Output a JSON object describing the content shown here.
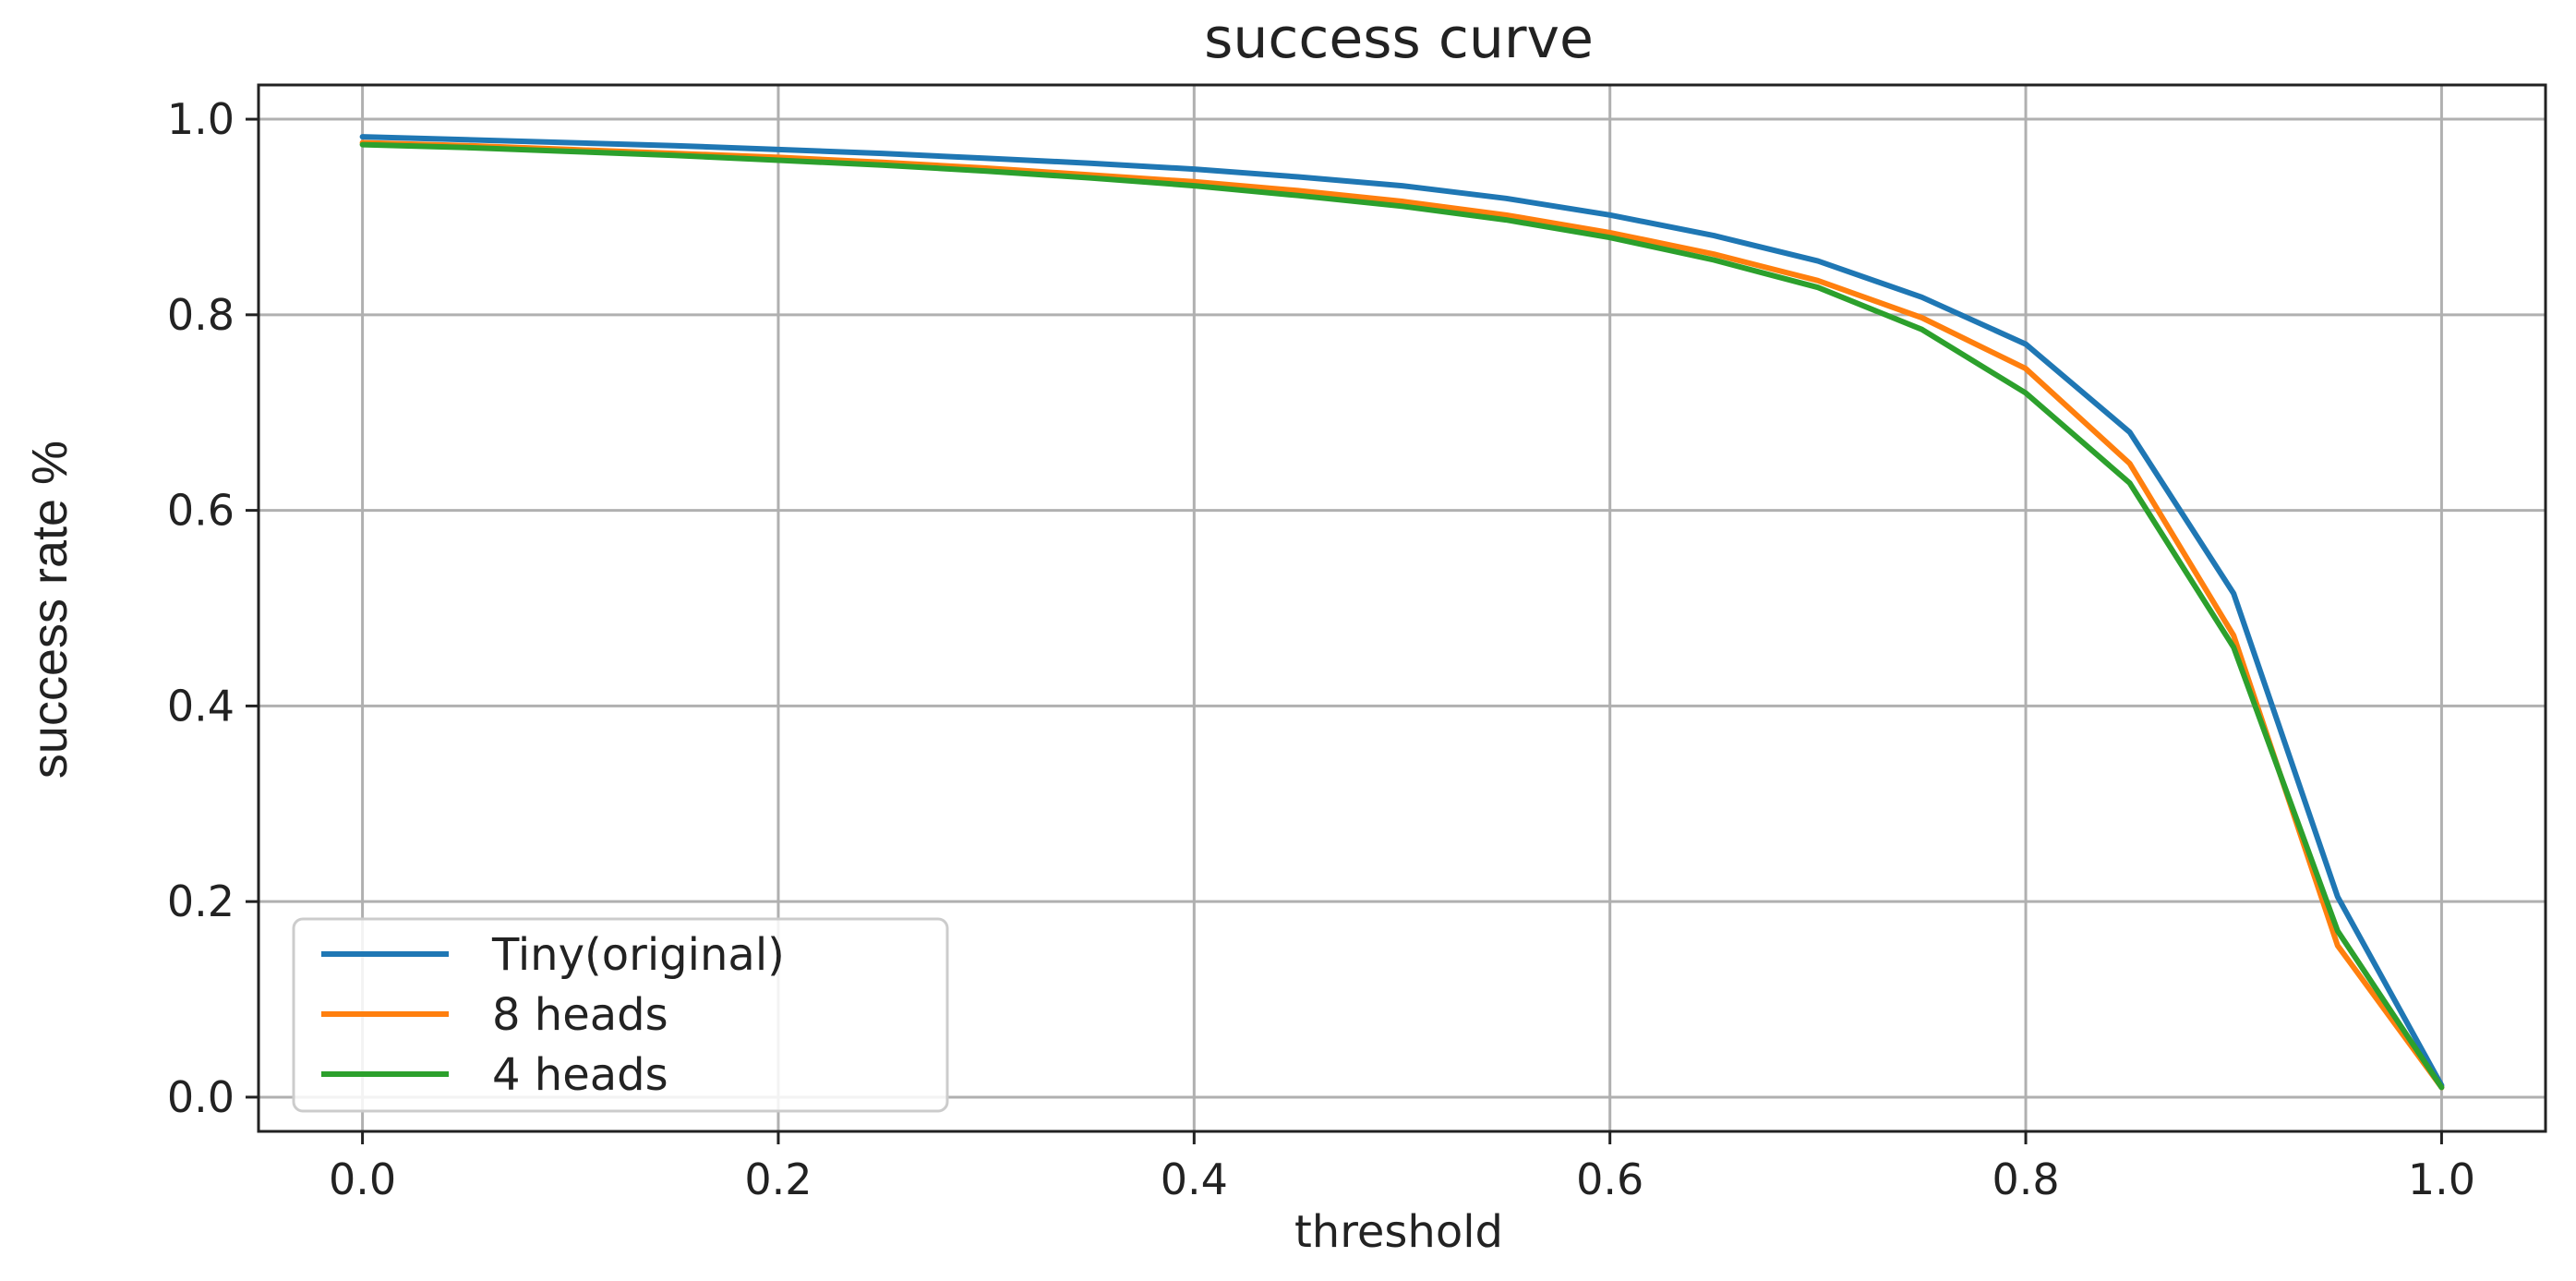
{
  "chart_data": {
    "type": "line",
    "title": "success curve",
    "xlabel": "threshold",
    "ylabel": "success rate %",
    "xlim": [
      -0.05,
      1.05
    ],
    "ylim": [
      -0.035,
      1.035
    ],
    "xticks": [
      0.0,
      0.2,
      0.4,
      0.6,
      0.8,
      1.0
    ],
    "xtick_labels": [
      "0.0",
      "0.2",
      "0.4",
      "0.6",
      "0.8",
      "1.0"
    ],
    "yticks": [
      0.0,
      0.2,
      0.4,
      0.6,
      0.8,
      1.0
    ],
    "ytick_labels": [
      "0.0",
      "0.2",
      "0.4",
      "0.6",
      "0.8",
      "1.0"
    ],
    "grid": true,
    "legend_position": "lower-left",
    "x": [
      0.0,
      0.05,
      0.1,
      0.15,
      0.2,
      0.25,
      0.3,
      0.35,
      0.4,
      0.45,
      0.5,
      0.55,
      0.6,
      0.65,
      0.7,
      0.75,
      0.8,
      0.85,
      0.9,
      0.95,
      1.0
    ],
    "series": [
      {
        "name": "Tiny(original)",
        "color": "#1f77b4",
        "values": [
          0.982,
          0.979,
          0.976,
          0.973,
          0.969,
          0.965,
          0.96,
          0.955,
          0.949,
          0.941,
          0.932,
          0.919,
          0.902,
          0.881,
          0.855,
          0.818,
          0.77,
          0.68,
          0.515,
          0.205,
          0.012
        ]
      },
      {
        "name": "8 heads",
        "color": "#ff7f0e",
        "values": [
          0.976,
          0.973,
          0.969,
          0.965,
          0.961,
          0.956,
          0.95,
          0.943,
          0.936,
          0.927,
          0.916,
          0.902,
          0.884,
          0.862,
          0.835,
          0.797,
          0.745,
          0.648,
          0.472,
          0.155,
          0.01
        ]
      },
      {
        "name": "4 heads",
        "color": "#2ca02c",
        "values": [
          0.974,
          0.971,
          0.967,
          0.963,
          0.958,
          0.953,
          0.947,
          0.94,
          0.932,
          0.922,
          0.911,
          0.897,
          0.879,
          0.856,
          0.828,
          0.785,
          0.72,
          0.628,
          0.46,
          0.17,
          0.01
        ]
      }
    ]
  }
}
